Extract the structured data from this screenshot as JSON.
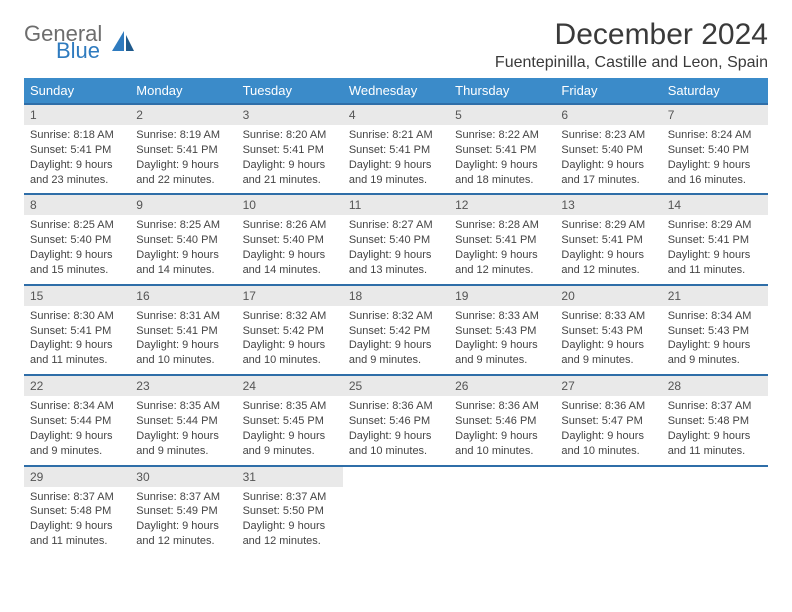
{
  "logo": {
    "text1": "General",
    "text2": "Blue",
    "icon_color": "#2f7bbf"
  },
  "title": "December 2024",
  "location": "Fuentepinilla, Castille and Leon, Spain",
  "colors": {
    "header_bg": "#3b8bc9",
    "header_text": "#ffffff",
    "row_divider": "#2f6ea8",
    "daynum_bg": "#e9e9e9",
    "body_text": "#444444"
  },
  "weekdays": [
    "Sunday",
    "Monday",
    "Tuesday",
    "Wednesday",
    "Thursday",
    "Friday",
    "Saturday"
  ],
  "weeks": [
    [
      {
        "n": "1",
        "sr": "Sunrise: 8:18 AM",
        "ss": "Sunset: 5:41 PM",
        "d1": "Daylight: 9 hours",
        "d2": "and 23 minutes."
      },
      {
        "n": "2",
        "sr": "Sunrise: 8:19 AM",
        "ss": "Sunset: 5:41 PM",
        "d1": "Daylight: 9 hours",
        "d2": "and 22 minutes."
      },
      {
        "n": "3",
        "sr": "Sunrise: 8:20 AM",
        "ss": "Sunset: 5:41 PM",
        "d1": "Daylight: 9 hours",
        "d2": "and 21 minutes."
      },
      {
        "n": "4",
        "sr": "Sunrise: 8:21 AM",
        "ss": "Sunset: 5:41 PM",
        "d1": "Daylight: 9 hours",
        "d2": "and 19 minutes."
      },
      {
        "n": "5",
        "sr": "Sunrise: 8:22 AM",
        "ss": "Sunset: 5:41 PM",
        "d1": "Daylight: 9 hours",
        "d2": "and 18 minutes."
      },
      {
        "n": "6",
        "sr": "Sunrise: 8:23 AM",
        "ss": "Sunset: 5:40 PM",
        "d1": "Daylight: 9 hours",
        "d2": "and 17 minutes."
      },
      {
        "n": "7",
        "sr": "Sunrise: 8:24 AM",
        "ss": "Sunset: 5:40 PM",
        "d1": "Daylight: 9 hours",
        "d2": "and 16 minutes."
      }
    ],
    [
      {
        "n": "8",
        "sr": "Sunrise: 8:25 AM",
        "ss": "Sunset: 5:40 PM",
        "d1": "Daylight: 9 hours",
        "d2": "and 15 minutes."
      },
      {
        "n": "9",
        "sr": "Sunrise: 8:25 AM",
        "ss": "Sunset: 5:40 PM",
        "d1": "Daylight: 9 hours",
        "d2": "and 14 minutes."
      },
      {
        "n": "10",
        "sr": "Sunrise: 8:26 AM",
        "ss": "Sunset: 5:40 PM",
        "d1": "Daylight: 9 hours",
        "d2": "and 14 minutes."
      },
      {
        "n": "11",
        "sr": "Sunrise: 8:27 AM",
        "ss": "Sunset: 5:40 PM",
        "d1": "Daylight: 9 hours",
        "d2": "and 13 minutes."
      },
      {
        "n": "12",
        "sr": "Sunrise: 8:28 AM",
        "ss": "Sunset: 5:41 PM",
        "d1": "Daylight: 9 hours",
        "d2": "and 12 minutes."
      },
      {
        "n": "13",
        "sr": "Sunrise: 8:29 AM",
        "ss": "Sunset: 5:41 PM",
        "d1": "Daylight: 9 hours",
        "d2": "and 12 minutes."
      },
      {
        "n": "14",
        "sr": "Sunrise: 8:29 AM",
        "ss": "Sunset: 5:41 PM",
        "d1": "Daylight: 9 hours",
        "d2": "and 11 minutes."
      }
    ],
    [
      {
        "n": "15",
        "sr": "Sunrise: 8:30 AM",
        "ss": "Sunset: 5:41 PM",
        "d1": "Daylight: 9 hours",
        "d2": "and 11 minutes."
      },
      {
        "n": "16",
        "sr": "Sunrise: 8:31 AM",
        "ss": "Sunset: 5:41 PM",
        "d1": "Daylight: 9 hours",
        "d2": "and 10 minutes."
      },
      {
        "n": "17",
        "sr": "Sunrise: 8:32 AM",
        "ss": "Sunset: 5:42 PM",
        "d1": "Daylight: 9 hours",
        "d2": "and 10 minutes."
      },
      {
        "n": "18",
        "sr": "Sunrise: 8:32 AM",
        "ss": "Sunset: 5:42 PM",
        "d1": "Daylight: 9 hours",
        "d2": "and 9 minutes."
      },
      {
        "n": "19",
        "sr": "Sunrise: 8:33 AM",
        "ss": "Sunset: 5:43 PM",
        "d1": "Daylight: 9 hours",
        "d2": "and 9 minutes."
      },
      {
        "n": "20",
        "sr": "Sunrise: 8:33 AM",
        "ss": "Sunset: 5:43 PM",
        "d1": "Daylight: 9 hours",
        "d2": "and 9 minutes."
      },
      {
        "n": "21",
        "sr": "Sunrise: 8:34 AM",
        "ss": "Sunset: 5:43 PM",
        "d1": "Daylight: 9 hours",
        "d2": "and 9 minutes."
      }
    ],
    [
      {
        "n": "22",
        "sr": "Sunrise: 8:34 AM",
        "ss": "Sunset: 5:44 PM",
        "d1": "Daylight: 9 hours",
        "d2": "and 9 minutes."
      },
      {
        "n": "23",
        "sr": "Sunrise: 8:35 AM",
        "ss": "Sunset: 5:44 PM",
        "d1": "Daylight: 9 hours",
        "d2": "and 9 minutes."
      },
      {
        "n": "24",
        "sr": "Sunrise: 8:35 AM",
        "ss": "Sunset: 5:45 PM",
        "d1": "Daylight: 9 hours",
        "d2": "and 9 minutes."
      },
      {
        "n": "25",
        "sr": "Sunrise: 8:36 AM",
        "ss": "Sunset: 5:46 PM",
        "d1": "Daylight: 9 hours",
        "d2": "and 10 minutes."
      },
      {
        "n": "26",
        "sr": "Sunrise: 8:36 AM",
        "ss": "Sunset: 5:46 PM",
        "d1": "Daylight: 9 hours",
        "d2": "and 10 minutes."
      },
      {
        "n": "27",
        "sr": "Sunrise: 8:36 AM",
        "ss": "Sunset: 5:47 PM",
        "d1": "Daylight: 9 hours",
        "d2": "and 10 minutes."
      },
      {
        "n": "28",
        "sr": "Sunrise: 8:37 AM",
        "ss": "Sunset: 5:48 PM",
        "d1": "Daylight: 9 hours",
        "d2": "and 11 minutes."
      }
    ],
    [
      {
        "n": "29",
        "sr": "Sunrise: 8:37 AM",
        "ss": "Sunset: 5:48 PM",
        "d1": "Daylight: 9 hours",
        "d2": "and 11 minutes."
      },
      {
        "n": "30",
        "sr": "Sunrise: 8:37 AM",
        "ss": "Sunset: 5:49 PM",
        "d1": "Daylight: 9 hours",
        "d2": "and 12 minutes."
      },
      {
        "n": "31",
        "sr": "Sunrise: 8:37 AM",
        "ss": "Sunset: 5:50 PM",
        "d1": "Daylight: 9 hours",
        "d2": "and 12 minutes."
      },
      {
        "empty": true
      },
      {
        "empty": true
      },
      {
        "empty": true
      },
      {
        "empty": true
      }
    ]
  ]
}
